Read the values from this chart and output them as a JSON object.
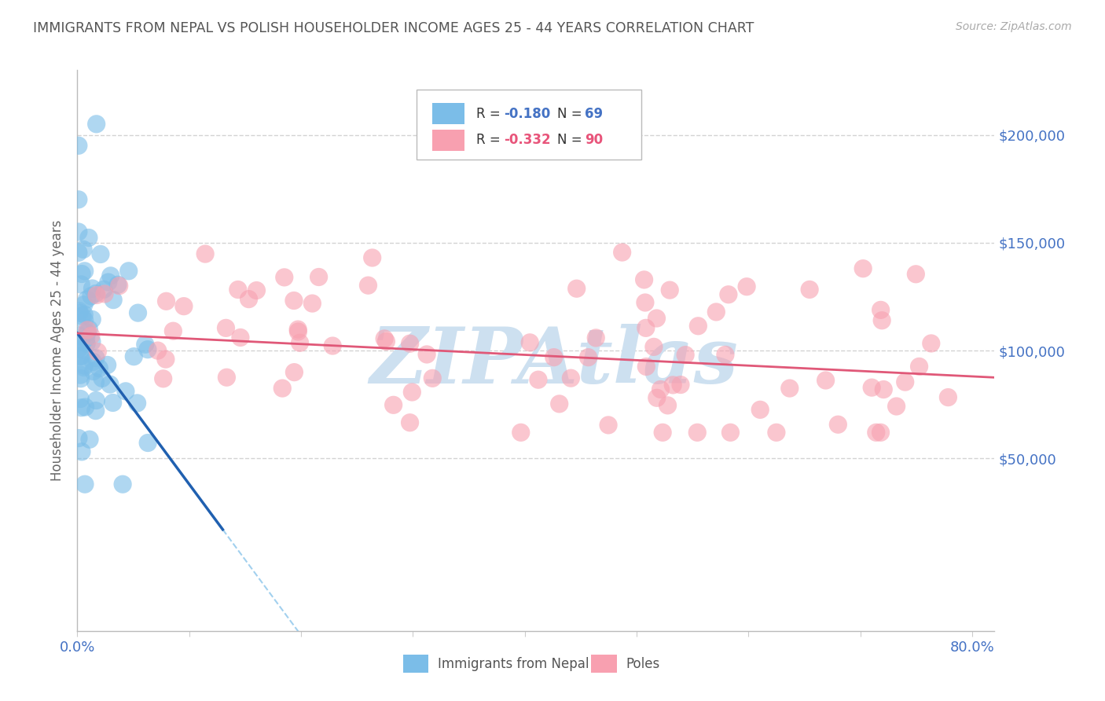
{
  "title": "IMMIGRANTS FROM NEPAL VS POLISH HOUSEHOLDER INCOME AGES 25 - 44 YEARS CORRELATION CHART",
  "source": "Source: ZipAtlas.com",
  "ylabel": "Householder Income Ages 25 - 44 years",
  "xlim": [
    0.0,
    0.82
  ],
  "ylim": [
    -30000,
    230000
  ],
  "plot_ylim": [
    -30000,
    230000
  ],
  "yticks": [
    50000,
    100000,
    150000,
    200000
  ],
  "ytick_labels": [
    "$50,000",
    "$100,000",
    "$150,000",
    "$200,000"
  ],
  "xticks": [
    0.0,
    0.1,
    0.2,
    0.3,
    0.4,
    0.5,
    0.6,
    0.7,
    0.8
  ],
  "nepal_R": -0.18,
  "nepal_N": 69,
  "poles_R": -0.332,
  "poles_N": 90,
  "nepal_color": "#7bbde8",
  "poles_color": "#f8a0b0",
  "nepal_line_color": "#2060b0",
  "poles_line_color": "#e05878",
  "watermark": "ZIPAtlas",
  "watermark_color": "#cde0f0",
  "background_color": "#ffffff",
  "grid_color": "#c8c8c8",
  "axis_label_color": "#4472c4",
  "title_color": "#555555",
  "source_color": "#aaaaaa",
  "legend_blue_color": "#4472c4",
  "legend_pink_color": "#e8547a"
}
